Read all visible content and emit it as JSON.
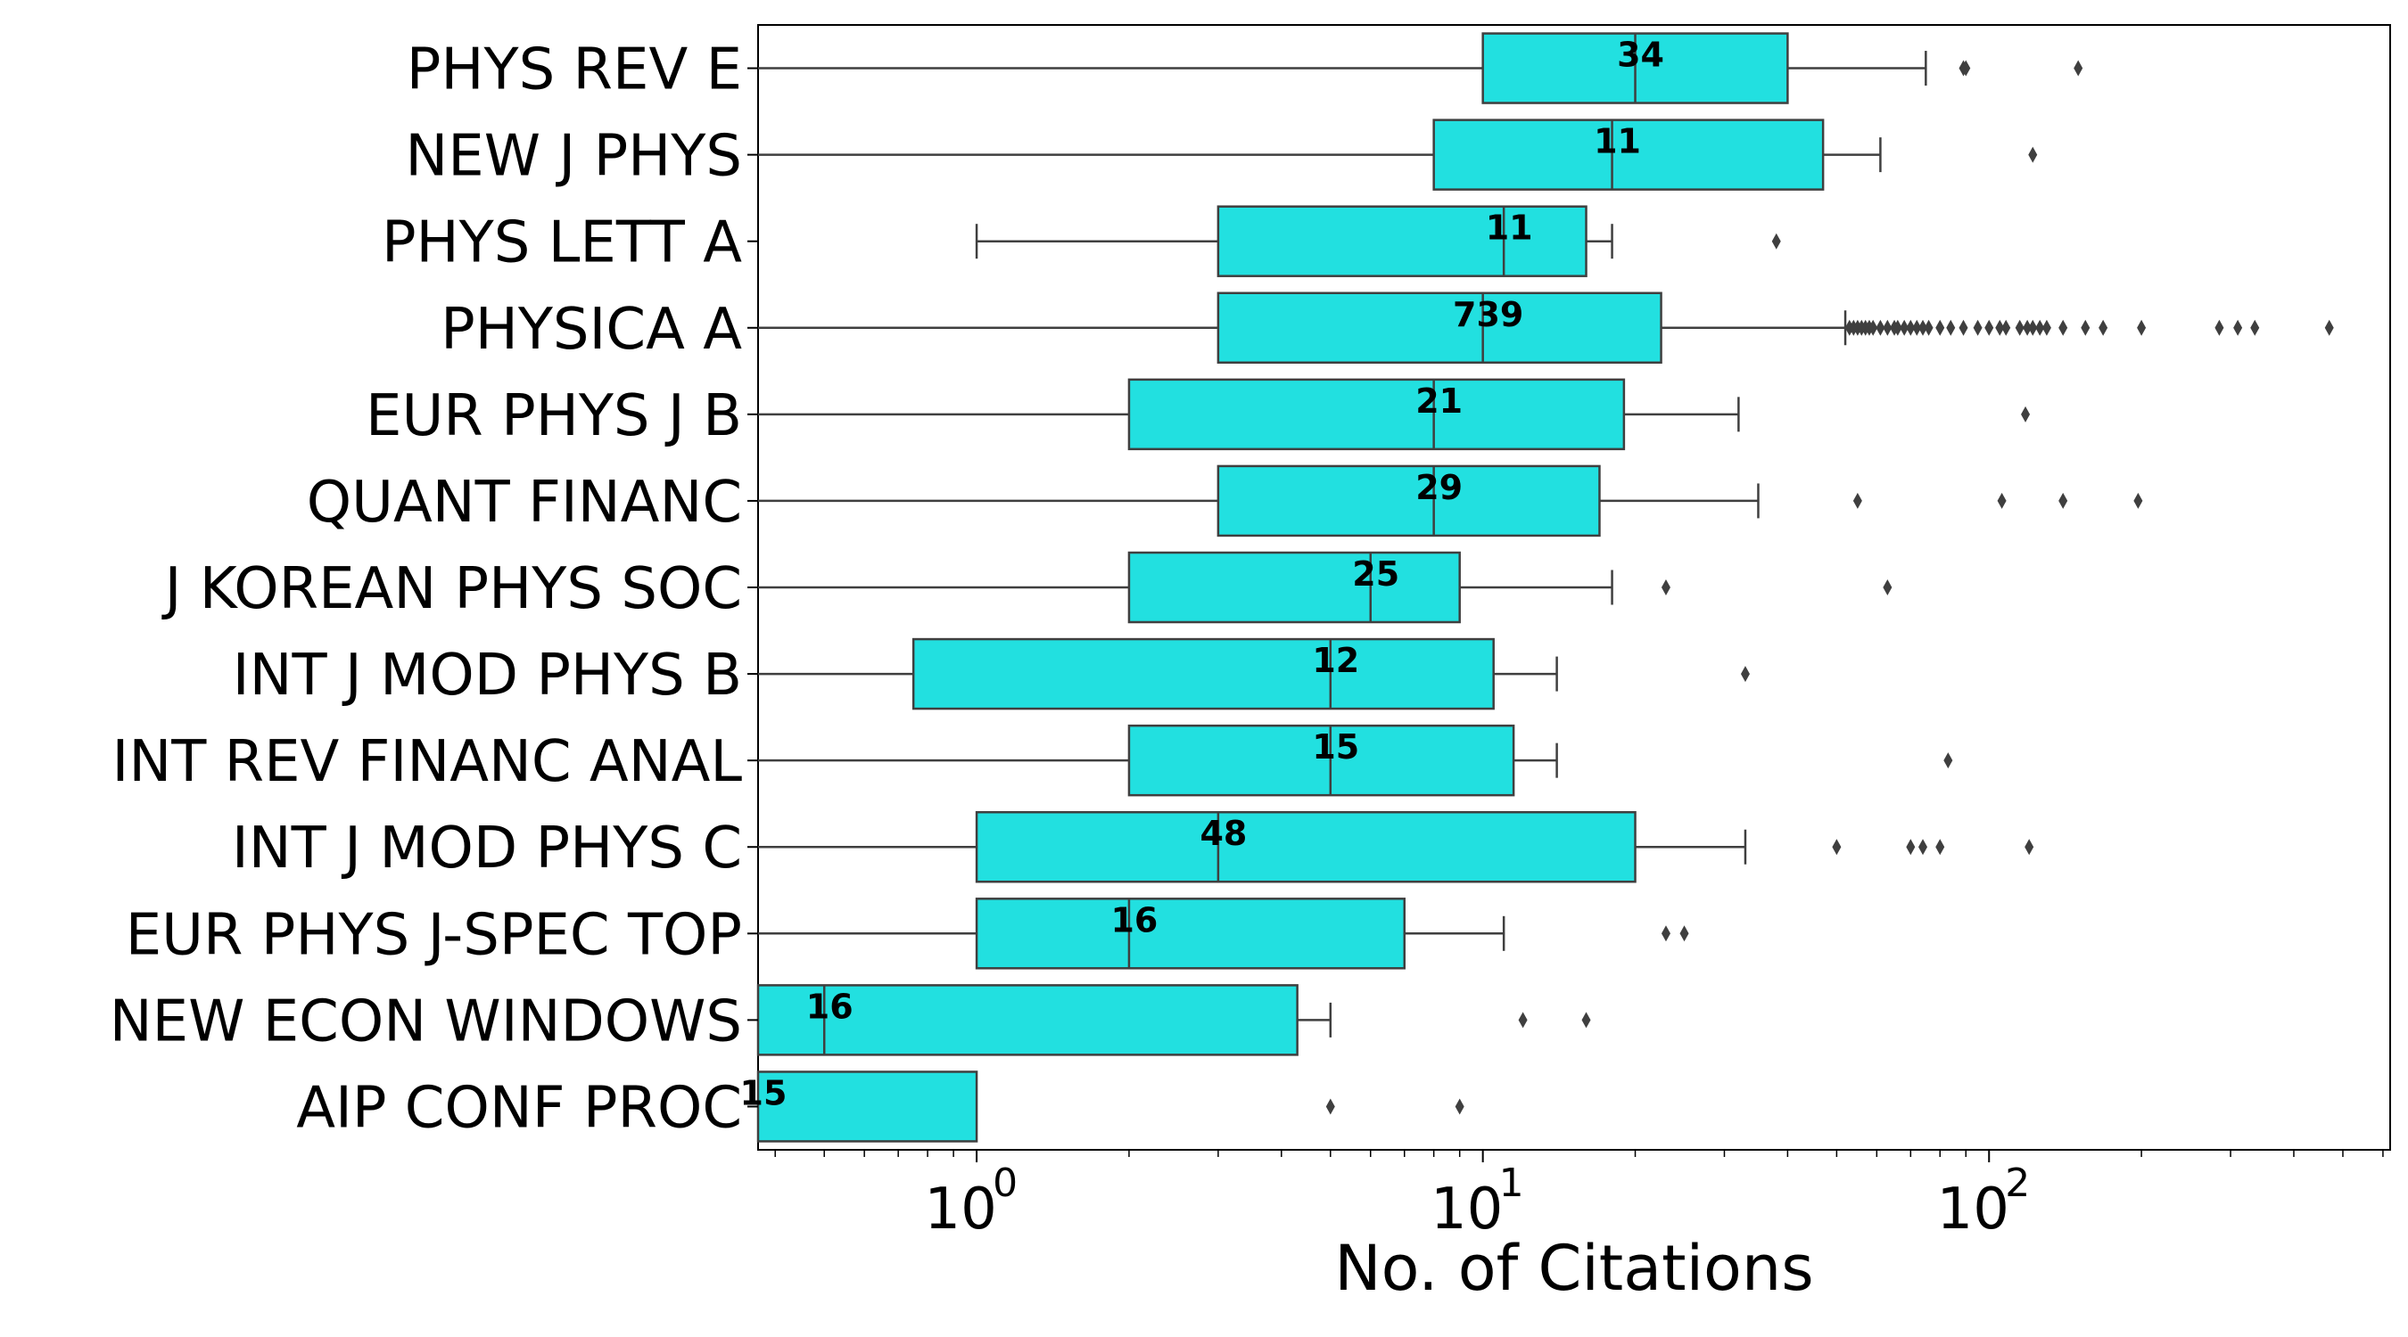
{
  "chart_data": {
    "type": "boxplot",
    "orientation": "horizontal",
    "xlabel": "No. of Citations",
    "xscale": "log",
    "xlim": [
      0.37,
      620
    ],
    "xticks": [
      {
        "value": 1,
        "base": "10",
        "exp": "0"
      },
      {
        "value": 10,
        "base": "10",
        "exp": "1"
      },
      {
        "value": 100,
        "base": "10",
        "exp": "2"
      }
    ],
    "box_color": "#22e0e0",
    "edge_color": "#3f3f3f",
    "series": [
      {
        "name": "PHYS REV E",
        "count": "34",
        "whislo": 0.37,
        "q1": 10,
        "median": 20,
        "q3": 40,
        "whishi": 75,
        "fliers": [
          89,
          90,
          150
        ]
      },
      {
        "name": "NEW J PHYS",
        "count": "11",
        "whislo": 0.37,
        "q1": 8,
        "median": 18,
        "q3": 47,
        "whishi": 61,
        "fliers": [
          122
        ]
      },
      {
        "name": "PHYS LETT A",
        "count": "11",
        "whislo": 1,
        "q1": 3,
        "median": 11,
        "q3": 16,
        "whishi": 18,
        "fliers": [
          38
        ]
      },
      {
        "name": "PHYSICA A",
        "count": "739",
        "whislo": 0.37,
        "q1": 3,
        "median": 10,
        "q3": 22.5,
        "whishi": 52,
        "fliers": [
          53,
          54,
          55,
          56,
          57,
          58,
          59,
          61,
          63,
          65,
          66,
          68,
          70,
          72,
          74,
          76,
          80,
          84,
          89,
          95,
          100,
          105,
          108,
          115,
          119,
          122,
          126,
          130,
          140,
          155,
          168,
          200,
          285,
          310,
          335,
          470
        ]
      },
      {
        "name": "EUR PHYS J B",
        "count": "21",
        "whislo": 0.37,
        "q1": 2,
        "median": 8,
        "q3": 19,
        "whishi": 32,
        "fliers": [
          118
        ]
      },
      {
        "name": "QUANT FINANC",
        "count": "29",
        "whislo": 0.37,
        "q1": 3,
        "median": 8,
        "q3": 17,
        "whishi": 35,
        "fliers": [
          55,
          106,
          140,
          197
        ]
      },
      {
        "name": "J KOREAN PHYS SOC",
        "count": "25",
        "whislo": 0.37,
        "q1": 2,
        "median": 6,
        "q3": 9,
        "whishi": 18,
        "fliers": [
          23,
          63
        ]
      },
      {
        "name": "INT J MOD PHYS B",
        "count": "12",
        "whislo": 0.37,
        "q1": 0.75,
        "median": 5,
        "q3": 10.5,
        "whishi": 14,
        "fliers": [
          33
        ]
      },
      {
        "name": "INT REV FINANC ANAL",
        "count": "15",
        "whislo": 0.37,
        "q1": 2,
        "median": 5,
        "q3": 11.5,
        "whishi": 14,
        "fliers": [
          83
        ]
      },
      {
        "name": "INT J MOD PHYS C",
        "count": "48",
        "whislo": 0.37,
        "q1": 1,
        "median": 3,
        "q3": 20,
        "whishi": 33,
        "fliers": [
          50,
          70,
          74,
          80,
          120
        ]
      },
      {
        "name": "EUR PHYS J-SPEC TOP",
        "count": "16",
        "whislo": 0.37,
        "q1": 1,
        "median": 2,
        "q3": 7,
        "whishi": 11,
        "fliers": [
          23,
          25
        ]
      },
      {
        "name": "NEW ECON WINDOWS",
        "count": "16",
        "whislo": 0.37,
        "q1": 0.37,
        "median": 0.5,
        "q3": 4.3,
        "whishi": 5,
        "fliers": [
          12,
          16
        ]
      },
      {
        "name": "AIP CONF PROC",
        "count": "15",
        "whislo": 0.37,
        "q1": 0.37,
        "median": 0.37,
        "q3": 1,
        "whishi": 1,
        "fliers": [
          5,
          9
        ]
      }
    ]
  }
}
